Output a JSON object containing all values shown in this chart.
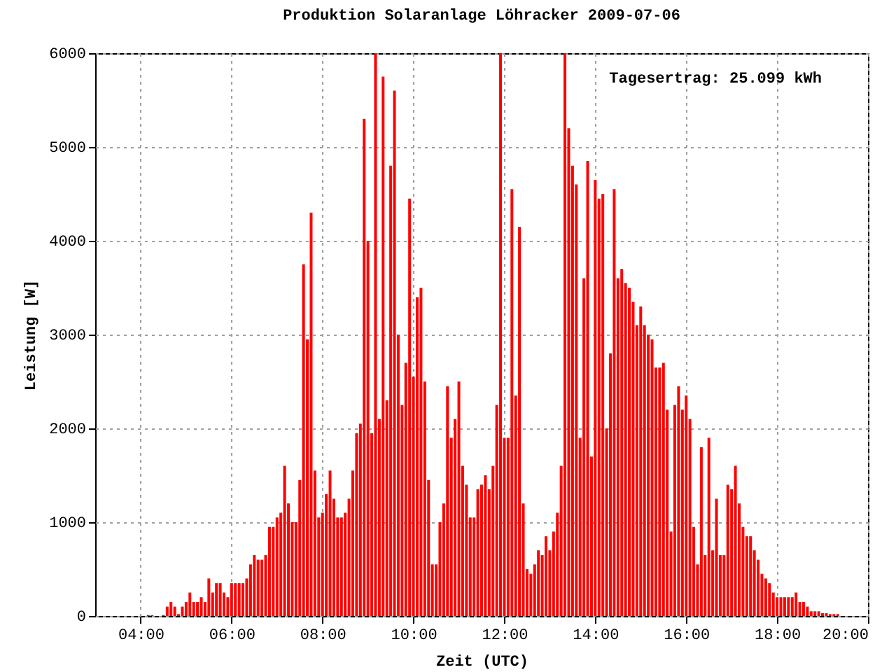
{
  "chart_data": {
    "type": "bar",
    "title": "Produktion Solaranlage Löhracker 2009-07-06",
    "xlabel": "Zeit (UTC)",
    "ylabel": "Leistung [W]",
    "annotations": [
      "Tagesertrag: 25.099 kWh"
    ],
    "color": "#ff0000",
    "grid": true,
    "xlim": [
      3,
      20
    ],
    "xticks": [
      {
        "value": 4,
        "label": "04:00"
      },
      {
        "value": 6,
        "label": "06:00"
      },
      {
        "value": 8,
        "label": "08:00"
      },
      {
        "value": 10,
        "label": "10:00"
      },
      {
        "value": 12,
        "label": "12:00"
      },
      {
        "value": 14,
        "label": "14:00"
      },
      {
        "value": 16,
        "label": "16:00"
      },
      {
        "value": 18,
        "label": "18:00"
      },
      {
        "value": 20,
        "label": "20:00"
      }
    ],
    "ylim": [
      0,
      6000
    ],
    "yticks": [
      0,
      1000,
      2000,
      3000,
      4000,
      5000,
      6000
    ],
    "x": [
      4.1667,
      4.25,
      4.5,
      4.5833,
      4.6667,
      4.75,
      4.8333,
      4.9167,
      5,
      5.0833,
      5.1667,
      5.25,
      5.3333,
      5.4167,
      5.5,
      5.5833,
      5.6667,
      5.75,
      5.8333,
      5.9167,
      6,
      6.0833,
      6.1667,
      6.25,
      6.3333,
      6.4167,
      6.5,
      6.5833,
      6.6667,
      6.75,
      6.8333,
      6.9167,
      7,
      7.0833,
      7.1667,
      7.25,
      7.3333,
      7.4167,
      7.5,
      7.5833,
      7.6667,
      7.75,
      7.8333,
      7.9167,
      8,
      8.0833,
      8.1667,
      8.25,
      8.3333,
      8.4167,
      8.5,
      8.5833,
      8.6667,
      8.75,
      8.8333,
      8.9167,
      9,
      9.0833,
      9.1667,
      9.25,
      9.3333,
      9.4167,
      9.5,
      9.5833,
      9.6667,
      9.75,
      9.8333,
      9.9167,
      10,
      10.0833,
      10.1667,
      10.25,
      10.3333,
      10.4167,
      10.5,
      10.5833,
      10.6667,
      10.75,
      10.8333,
      10.9167,
      11,
      11.0833,
      11.1667,
      11.25,
      11.3333,
      11.4167,
      11.5,
      11.5833,
      11.6667,
      11.75,
      11.8333,
      11.9167,
      12,
      12.0833,
      12.1667,
      12.25,
      12.3333,
      12.4167,
      12.5,
      12.5833,
      12.6667,
      12.75,
      12.8333,
      12.9167,
      13,
      13.0833,
      13.1667,
      13.25,
      13.3333,
      13.4167,
      13.5,
      13.5833,
      13.6667,
      13.75,
      13.8333,
      13.9167,
      14,
      14.0833,
      14.1667,
      14.25,
      14.3333,
      14.4167,
      14.5,
      14.5833,
      14.6667,
      14.75,
      14.8333,
      14.9167,
      15,
      15.0833,
      15.1667,
      15.25,
      15.3333,
      15.4167,
      15.5,
      15.5833,
      15.6667,
      15.75,
      15.8333,
      15.9167,
      16,
      16.0833,
      16.1667,
      16.25,
      16.3333,
      16.4167,
      16.5,
      16.5833,
      16.6667,
      16.75,
      16.8333,
      16.9167,
      17,
      17.0833,
      17.1667,
      17.25,
      17.3333,
      17.4167,
      17.5,
      17.5833,
      17.6667,
      17.75,
      17.8333,
      17.9167,
      18,
      18.0833,
      18.1667,
      18.25,
      18.3333,
      18.4167,
      18.5,
      18.5833,
      18.6667,
      18.75,
      18.8333,
      18.9167,
      19,
      19.0833,
      19.1667,
      19.25,
      19.3333
    ],
    "values": [
      10,
      10,
      10,
      100,
      150,
      100,
      20,
      100,
      150,
      250,
      150,
      150,
      200,
      150,
      400,
      250,
      350,
      350,
      250,
      200,
      350,
      350,
      350,
      350,
      400,
      550,
      650,
      600,
      600,
      650,
      950,
      950,
      1050,
      1100,
      1600,
      1200,
      1000,
      1000,
      1450,
      3750,
      2950,
      4300,
      1550,
      1050,
      1100,
      1300,
      1550,
      1250,
      1050,
      1050,
      1100,
      1250,
      1550,
      1950,
      2050,
      5300,
      4000,
      1950,
      6000,
      2100,
      5750,
      2300,
      4800,
      5600,
      3000,
      2250,
      2700,
      4450,
      2550,
      3400,
      3500,
      2500,
      1450,
      550,
      550,
      1000,
      1200,
      2450,
      1900,
      2100,
      2500,
      1600,
      1400,
      1050,
      1050,
      1350,
      1400,
      1500,
      1350,
      1600,
      2250,
      6000,
      1900,
      1900,
      4550,
      2350,
      4150,
      1200,
      500,
      450,
      550,
      700,
      650,
      850,
      700,
      900,
      1100,
      1600,
      6000,
      5200,
      4800,
      4600,
      1900,
      3600,
      4850,
      1700,
      4650,
      4450,
      4500,
      2000,
      2800,
      4550,
      3600,
      3700,
      3550,
      3500,
      3350,
      3100,
      3300,
      3100,
      3000,
      2950,
      2650,
      2650,
      2700,
      2200,
      900,
      2250,
      2450,
      2200,
      2350,
      2100,
      950,
      550,
      1800,
      650,
      1900,
      700,
      1250,
      650,
      650,
      1400,
      1350,
      1600,
      1200,
      950,
      850,
      850,
      700,
      600,
      450,
      400,
      350,
      250,
      200,
      200,
      200,
      200,
      200,
      250,
      150,
      150,
      100,
      50,
      50,
      50,
      30,
      30,
      20,
      20,
      20
    ]
  }
}
